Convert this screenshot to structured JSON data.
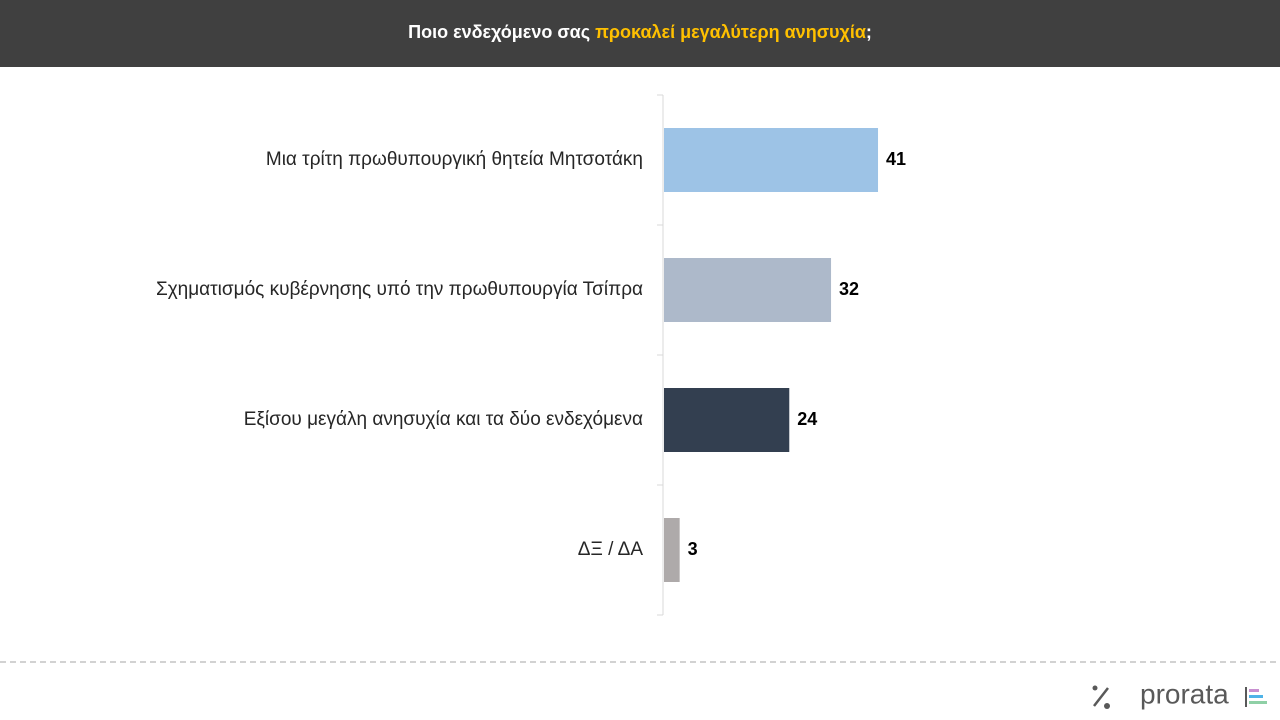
{
  "chart_data": {
    "type": "hbar",
    "title": [
      "Ποιο ενδεχόμενο σας",
      "προκαλεί μεγαλύτερη ανησυχία",
      ";"
    ],
    "categories": [
      "Μια τρίτη πρωθυπουργική θητεία Μητσοτάκη",
      "Σχηματισμός κυβέρνησης υπό την πρωθυπουργία Τσίπρα",
      "Εξίσου μεγάλη ανησυχία και τα δύο ενδεχόμενα",
      "ΔΞ / ΔΑ"
    ],
    "values": [
      41,
      32,
      24,
      3
    ],
    "colors": [
      "#9dc3e6",
      "#adb9ca",
      "#333f50",
      "#aeaaaa"
    ]
  },
  "footer": {
    "logo": "prorata"
  }
}
